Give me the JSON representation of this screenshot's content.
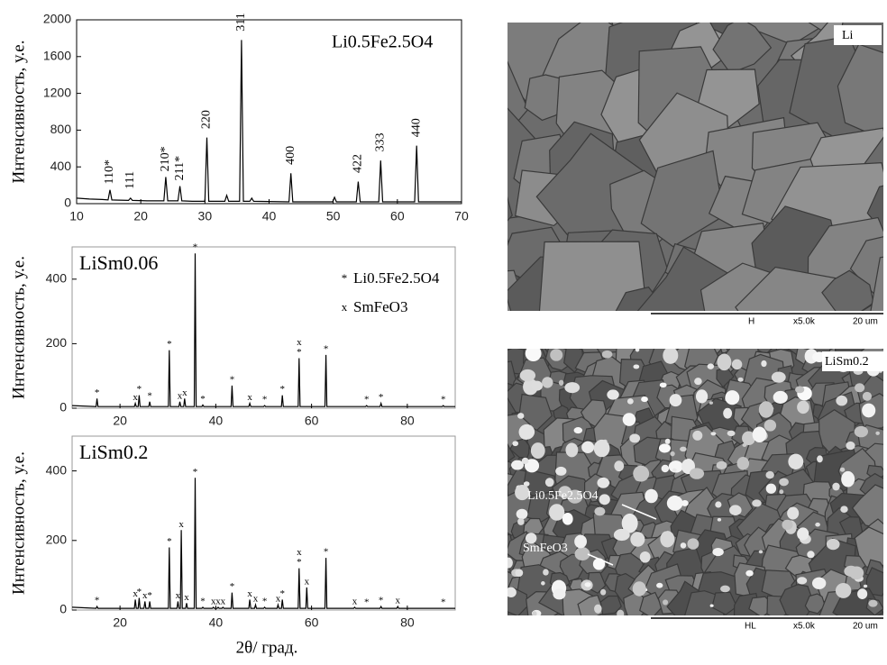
{
  "chart_data": [
    {
      "type": "line",
      "title": "Li0.5Fe2.5O4",
      "ylabel": "Интенсивность, у.е.",
      "xlim": [
        10,
        70
      ],
      "xticks": [
        10,
        20,
        30,
        40,
        50,
        60,
        70
      ],
      "ylim": [
        0,
        2000
      ],
      "yticks": [
        0,
        400,
        800,
        1200,
        1600,
        2000
      ],
      "series": [
        {
          "color": "#000000",
          "x": [
            10,
            12,
            14,
            14.9,
            15.2,
            15.5,
            18.1,
            18.4,
            18.7,
            21,
            23.6,
            23.9,
            24.2,
            25.8,
            26.1,
            26.4,
            28,
            30,
            30.3,
            30.6,
            33.1,
            33.4,
            33.7,
            35.4,
            35.7,
            36,
            37,
            37.3,
            37.6,
            43.1,
            43.4,
            43.7,
            47,
            49.9,
            50.2,
            50.5,
            53.6,
            53.9,
            54.2,
            57.1,
            57.4,
            57.7,
            60,
            62.7,
            63,
            63.3,
            66,
            70
          ],
          "values": [
            60,
            50,
            45,
            40,
            150,
            40,
            35,
            60,
            35,
            30,
            30,
            290,
            30,
            30,
            190,
            30,
            25,
            25,
            720,
            25,
            25,
            90,
            25,
            25,
            1780,
            25,
            25,
            60,
            25,
            20,
            330,
            20,
            20,
            20,
            70,
            20,
            20,
            240,
            20,
            20,
            470,
            20,
            20,
            20,
            630,
            20,
            20,
            20
          ]
        }
      ],
      "annotations": [
        {
          "text": "110*",
          "x": 15.2
        },
        {
          "text": "111",
          "x": 18.4
        },
        {
          "text": "210*",
          "x": 23.9
        },
        {
          "text": "211*",
          "x": 26.1
        },
        {
          "text": "220",
          "x": 30.3
        },
        {
          "text": "311",
          "x": 35.7
        },
        {
          "text": "400",
          "x": 43.4
        },
        {
          "text": "422",
          "x": 53.9
        },
        {
          "text": "333",
          "x": 57.4
        },
        {
          "text": "440",
          "x": 63.0
        }
      ]
    },
    {
      "type": "line",
      "title": "LiSm0.06",
      "ylabel": "Интенсивность, у.е.",
      "xlim": [
        10,
        90
      ],
      "xticks": [
        20,
        40,
        60,
        80
      ],
      "ylim": [
        0,
        500
      ],
      "yticks": [
        0,
        200,
        400
      ],
      "legend": [
        {
          "symbol": "*",
          "label": "Li0.5Fe2.5O4"
        },
        {
          "symbol": "x",
          "label": "SmFeO3"
        }
      ],
      "series": [
        {
          "color": "#000000",
          "x": [
            10,
            15,
            15.2,
            15.4,
            23,
            23.2,
            23.4,
            23.8,
            24,
            24.2,
            26,
            26.2,
            26.4,
            30.1,
            30.3,
            30.5,
            32.3,
            32.5,
            32.7,
            33.3,
            33.5,
            33.7,
            35.5,
            35.7,
            35.9,
            37.1,
            37.3,
            37.5,
            43.2,
            43.4,
            43.6,
            46.9,
            47.1,
            47.3,
            50,
            50.2,
            50.4,
            53.7,
            53.9,
            54.1,
            57.2,
            57.4,
            57.6,
            62.8,
            63,
            63.2,
            71.3,
            71.5,
            71.7,
            74.3,
            74.5,
            74.7,
            87.3,
            87.5,
            87.7,
            90
          ],
          "values": [
            8,
            5,
            30,
            5,
            5,
            15,
            5,
            5,
            40,
            5,
            5,
            20,
            5,
            5,
            180,
            5,
            5,
            20,
            5,
            5,
            30,
            5,
            5,
            480,
            5,
            5,
            10,
            5,
            5,
            70,
            5,
            5,
            15,
            5,
            5,
            8,
            5,
            5,
            40,
            5,
            5,
            155,
            5,
            5,
            165,
            5,
            5,
            8,
            5,
            5,
            15,
            5,
            5,
            8,
            5,
            5
          ]
        }
      ],
      "annotations": [
        {
          "text": "*",
          "x": 15.2
        },
        {
          "text": "x",
          "x": 23.2
        },
        {
          "text": "*",
          "x": 24
        },
        {
          "text": "*",
          "x": 26.2
        },
        {
          "text": "*",
          "x": 30.3
        },
        {
          "text": "x",
          "x": 32.5
        },
        {
          "text": "x",
          "x": 33.5
        },
        {
          "text": "*",
          "x": 35.7
        },
        {
          "text": "*",
          "x": 37.3
        },
        {
          "text": "*",
          "x": 43.4
        },
        {
          "text": "x",
          "x": 47.1
        },
        {
          "text": "*",
          "x": 50.2
        },
        {
          "text": "*",
          "x": 53.9
        },
        {
          "text": "*",
          "x": 57.4
        },
        {
          "text": "x",
          "x": 57.4
        },
        {
          "text": "*",
          "x": 63
        },
        {
          "text": "*",
          "x": 71.5
        },
        {
          "text": "*",
          "x": 74.5
        },
        {
          "text": "*",
          "x": 87.5
        }
      ]
    },
    {
      "type": "line",
      "title": "LiSm0.2",
      "ylabel": "Интенсивность, у.е.",
      "xlabel": "2θ/ град.",
      "xlim": [
        10,
        90
      ],
      "xticks": [
        20,
        40,
        60,
        80
      ],
      "ylim": [
        0,
        500
      ],
      "yticks": [
        0,
        200,
        400
      ],
      "series": [
        {
          "color": "#000000",
          "x": [
            10,
            15,
            15.2,
            15.4,
            23,
            23.2,
            23.4,
            23.8,
            24,
            24.2,
            25,
            25.2,
            25.4,
            26,
            26.2,
            26.4,
            30.1,
            30.3,
            30.5,
            31.9,
            32.1,
            32.3,
            32.6,
            32.8,
            33,
            33.7,
            33.9,
            34.1,
            35.5,
            35.7,
            35.9,
            37.1,
            37.3,
            37.5,
            39.3,
            39.5,
            39.7,
            40.3,
            40.5,
            40.7,
            41.3,
            41.5,
            41.7,
            43.2,
            43.4,
            43.6,
            46.9,
            47.1,
            47.3,
            48.1,
            48.3,
            48.5,
            50,
            50.2,
            50.4,
            52.8,
            53,
            53.2,
            53.7,
            53.9,
            54.1,
            57.2,
            57.4,
            57.6,
            58.8,
            59,
            59.2,
            62.8,
            63,
            63.2,
            68.8,
            69,
            69.2,
            71.3,
            71.5,
            71.7,
            74.3,
            74.5,
            74.7,
            77.8,
            78,
            78.2,
            87.3,
            87.5,
            87.7,
            90
          ],
          "values": [
            8,
            5,
            10,
            5,
            5,
            30,
            5,
            5,
            35,
            5,
            5,
            25,
            5,
            5,
            25,
            5,
            5,
            180,
            5,
            5,
            25,
            5,
            5,
            230,
            5,
            5,
            20,
            5,
            5,
            380,
            5,
            5,
            8,
            5,
            5,
            8,
            5,
            5,
            8,
            5,
            5,
            8,
            5,
            5,
            50,
            5,
            5,
            30,
            5,
            5,
            15,
            5,
            5,
            8,
            5,
            5,
            15,
            5,
            5,
            30,
            5,
            5,
            120,
            5,
            5,
            65,
            5,
            5,
            150,
            5,
            5,
            8,
            5,
            5,
            5,
            5,
            5,
            10,
            5,
            5,
            10,
            5,
            5,
            5,
            5,
            5
          ]
        }
      ],
      "annotations": [
        {
          "text": "*",
          "x": 15.2
        },
        {
          "text": "x",
          "x": 23.2
        },
        {
          "text": "*",
          "x": 24
        },
        {
          "text": "x",
          "x": 25.2
        },
        {
          "text": "*",
          "x": 26.2
        },
        {
          "text": "*",
          "x": 30.3
        },
        {
          "text": "x",
          "x": 32.1
        },
        {
          "text": "x",
          "x": 32.8
        },
        {
          "text": "x",
          "x": 33.9
        },
        {
          "text": "*",
          "x": 35.7
        },
        {
          "text": "*",
          "x": 37.3
        },
        {
          "text": "x",
          "x": 39.5
        },
        {
          "text": "x",
          "x": 40.5
        },
        {
          "text": "x",
          "x": 41.5
        },
        {
          "text": "*",
          "x": 43.4
        },
        {
          "text": "x",
          "x": 47.1
        },
        {
          "text": "x",
          "x": 48.3
        },
        {
          "text": "*",
          "x": 50.2
        },
        {
          "text": "x",
          "x": 53
        },
        {
          "text": "*",
          "x": 53.9
        },
        {
          "text": "*",
          "x": 57.4
        },
        {
          "text": "x",
          "x": 57.4
        },
        {
          "text": "x",
          "x": 59
        },
        {
          "text": "*",
          "x": 63
        },
        {
          "text": "x",
          "x": 69
        },
        {
          "text": "*",
          "x": 71.5
        },
        {
          "text": "*",
          "x": 74.5
        },
        {
          "text": "x",
          "x": 78
        },
        {
          "text": "*",
          "x": 87.5
        }
      ]
    }
  ],
  "images": [
    {
      "label": "Li",
      "scale_bar": [
        "H",
        "x5.0k",
        "20 um"
      ]
    },
    {
      "label": "LiSm0.2",
      "scale_bar": [
        "HL",
        "x5.0k",
        "20 um"
      ],
      "callouts": [
        "Li0.5Fe2.5O4",
        "SmFeO3"
      ]
    }
  ]
}
